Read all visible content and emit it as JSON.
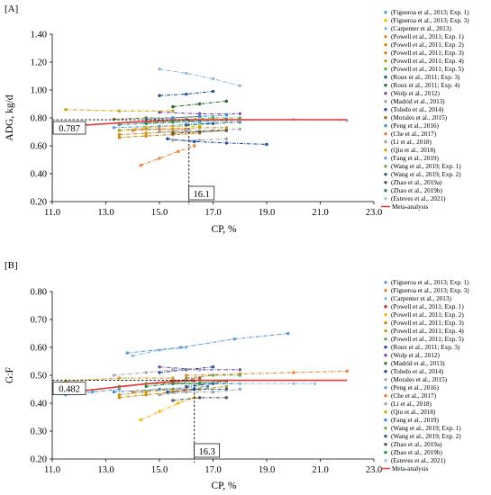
{
  "chart_data": [
    {
      "panel_label": "[A]",
      "type": "line",
      "xlabel": "CP, %",
      "ylabel": "ADG, kg/d",
      "xlim": [
        11.0,
        23.0
      ],
      "ylim": [
        0.2,
        1.4
      ],
      "x_ticks": [
        "11.0",
        "13.0",
        "15.0",
        "17.0",
        "19.0",
        "21.0",
        "23.0"
      ],
      "y_ticks": [
        "0.20",
        "0.40",
        "0.60",
        "0.80",
        "1.00",
        "1.20",
        "1.40"
      ],
      "legend_position": "right",
      "annotations": [
        {
          "label": "0.787",
          "value": 0.787,
          "axis": "y"
        },
        {
          "label": "16.1",
          "value": 16.1,
          "axis": "x"
        }
      ],
      "meta": {
        "name": "Meta-analysis",
        "x": [
          11.5,
          12.5,
          13.5,
          14.5,
          15.5,
          16.1,
          17.0,
          18.0,
          19.0,
          20.0,
          21.0,
          22.0
        ],
        "y": [
          0.74,
          0.752,
          0.764,
          0.775,
          0.784,
          0.787,
          0.787,
          0.787,
          0.787,
          0.787,
          0.787,
          0.787
        ]
      },
      "series": [
        {
          "name": "(Figueroa et al., 2013; Exp. 1)",
          "color": "#4f9fd8",
          "x": [
            13.5,
            14.5,
            15.5,
            16.5
          ],
          "y": [
            0.75,
            0.76,
            0.77,
            0.77
          ]
        },
        {
          "name": "(Figueroa et al., 2013; Exp. 3)",
          "color": "#f5b700",
          "x": [
            13.5,
            14.5,
            15.5,
            16.5
          ],
          "y": [
            0.71,
            0.73,
            0.74,
            0.74
          ]
        },
        {
          "name": "(Carpenter et al., 2013)",
          "color": "#8fb7de",
          "x": [
            15.0,
            16.0,
            17.0,
            18.0
          ],
          "y": [
            1.15,
            1.12,
            1.08,
            1.03
          ]
        },
        {
          "name": "(Powell et al., 2011; Exp. 1)",
          "color": "#f08030",
          "x": [
            14.3,
            15.0,
            15.7,
            16.3
          ],
          "y": [
            0.46,
            0.51,
            0.56,
            0.6
          ]
        },
        {
          "name": "(Powell et al., 2011; Exp. 2)",
          "color": "#c8860b",
          "x": [
            13.5,
            14.5,
            15.5,
            16.5
          ],
          "y": [
            0.66,
            0.67,
            0.68,
            0.69
          ]
        },
        {
          "name": "(Powell et al., 2011; Exp. 3)",
          "color": "#d08a1e",
          "x": [
            13.5,
            14.5,
            15.5,
            16.5,
            17.5
          ],
          "y": [
            0.68,
            0.69,
            0.7,
            0.7,
            0.71
          ]
        },
        {
          "name": "(Powell et al., 2011; Exp. 4)",
          "color": "#b5a019",
          "x": [
            13.5,
            14.5,
            15.5,
            16.5,
            17.5
          ],
          "y": [
            0.71,
            0.72,
            0.72,
            0.73,
            0.73
          ]
        },
        {
          "name": "(Powell et al., 2011; Exp. 5)",
          "color": "#4caf50",
          "x": [
            13.5,
            14.5,
            15.5,
            16.5,
            17.5
          ],
          "y": [
            0.76,
            0.77,
            0.77,
            0.78,
            0.78
          ]
        },
        {
          "name": "(Roux et al., 2011; Exp. 3)",
          "color": "#1f4e9a",
          "x": [
            15.0,
            16.0,
            17.0
          ],
          "y": [
            0.96,
            0.97,
            0.99
          ]
        },
        {
          "name": "(Roux et al., 2011; Exp. 4)",
          "color": "#1f6b2a",
          "x": [
            15.5,
            16.5,
            17.5
          ],
          "y": [
            0.88,
            0.9,
            0.92
          ]
        },
        {
          "name": "(Wolp et al., 2012)",
          "color": "#7a4aa8",
          "x": [
            15.0,
            16.5,
            18.0
          ],
          "y": [
            0.84,
            0.83,
            0.83
          ]
        },
        {
          "name": "(Madrid et al., 2013)",
          "color": "#a8a8a8",
          "x": [
            15.5,
            16.5,
            17.5
          ],
          "y": [
            0.64,
            0.64,
            0.65
          ]
        },
        {
          "name": "(Toledo et al., 2014)",
          "color": "#1a4fa0",
          "x": [
            15.3,
            16.3,
            17.5,
            19.0
          ],
          "y": [
            0.65,
            0.63,
            0.62,
            0.61
          ]
        },
        {
          "name": "(Morales et al., 2015)",
          "color": "#8a6f2a",
          "x": [
            13.3,
            14.5,
            15.5,
            16.5
          ],
          "y": [
            0.79,
            0.8,
            0.8,
            0.81
          ]
        },
        {
          "name": "(Peng et al., 2016)",
          "color": "#3a8fd0",
          "x": [
            14.5,
            15.5,
            16.5,
            17.5
          ],
          "y": [
            0.79,
            0.8,
            0.81,
            0.82
          ]
        },
        {
          "name": "(Che et al., 2017)",
          "color": "#e07b39",
          "x": [
            14.0,
            15.0,
            16.0
          ],
          "y": [
            0.71,
            0.72,
            0.72
          ]
        },
        {
          "name": "(Li et al., 2018)",
          "color": "#a0a0a0",
          "x": [
            15.0,
            16.0,
            17.0,
            18.0
          ],
          "y": [
            0.7,
            0.71,
            0.71,
            0.72
          ]
        },
        {
          "name": "(Qiu et al., 2018)",
          "color": "#d4a017",
          "x": [
            11.5,
            13.5,
            15.5
          ],
          "y": [
            0.86,
            0.85,
            0.85
          ]
        },
        {
          "name": "(Fang et al., 2019)",
          "color": "#5b9bd5",
          "x": [
            13.3,
            15.0,
            16.8
          ],
          "y": [
            0.73,
            0.74,
            0.76
          ]
        },
        {
          "name": "(Wang et al., 2019; Exp. 1)",
          "color": "#6aa84f",
          "x": [
            16.0,
            17.0,
            18.0
          ],
          "y": [
            0.79,
            0.8,
            0.8
          ]
        },
        {
          "name": "(Wang et al., 2019; Exp. 2)",
          "color": "#2e5a8a",
          "x": [
            16.0,
            17.0,
            18.0
          ],
          "y": [
            0.75,
            0.76,
            0.77
          ]
        },
        {
          "name": "(Zhao et al., 2019a)",
          "color": "#555555",
          "x": [
            15.5,
            16.5,
            17.5
          ],
          "y": [
            0.69,
            0.7,
            0.71
          ]
        },
        {
          "name": "(Zhao et al., 2019b)",
          "color": "#2e8b57",
          "x": [
            14.5,
            15.5,
            16.5,
            17.5
          ],
          "y": [
            0.76,
            0.77,
            0.78,
            0.79
          ]
        },
        {
          "name": "(Esteves et al., 2021)",
          "color": "#9dc3e6",
          "x": [
            16.0,
            18.0,
            20.0,
            22.0
          ],
          "y": [
            0.77,
            0.78,
            0.79,
            0.78
          ]
        }
      ]
    },
    {
      "panel_label": "[B]",
      "type": "line",
      "xlabel": "CP, %",
      "ylabel": "G:F",
      "xlim": [
        11.0,
        23.0
      ],
      "ylim": [
        0.2,
        0.8
      ],
      "x_ticks": [
        "11.0",
        "13.0",
        "15.0",
        "17.0",
        "19.0",
        "21.0",
        "23.0"
      ],
      "y_ticks": [
        "0.20",
        "0.30",
        "0.40",
        "0.50",
        "0.60",
        "0.70",
        "0.80"
      ],
      "legend_position": "right",
      "annotations": [
        {
          "label": "0.482",
          "value": 0.482,
          "axis": "y"
        },
        {
          "label": "16.3",
          "value": 16.3,
          "axis": "x"
        }
      ],
      "meta": {
        "name": "Meta-analysis",
        "x": [
          11.5,
          12.5,
          13.5,
          14.5,
          15.5,
          16.3,
          17.0,
          18.0,
          19.0,
          20.0,
          21.0,
          22.0
        ],
        "y": [
          0.437,
          0.448,
          0.459,
          0.469,
          0.477,
          0.482,
          0.482,
          0.482,
          0.482,
          0.482,
          0.482,
          0.482
        ]
      },
      "series": [
        {
          "name": "(Figueroa et al., 2013; Exp. 1)",
          "color": "#4f9fd8",
          "x": [
            11.5,
            12.5,
            13.5
          ],
          "y": [
            0.43,
            0.44,
            0.45
          ]
        },
        {
          "name": "(Figueroa et al., 2013; Exp. 3)",
          "color": "#f08030",
          "x": [
            16.0,
            18.0,
            20.0,
            22.0
          ],
          "y": [
            0.5,
            0.505,
            0.51,
            0.515
          ]
        },
        {
          "name": "(Carpenter et al., 2013)",
          "color": "#8fb7de",
          "x": [
            14.0,
            15.0,
            16.0
          ],
          "y": [
            0.57,
            0.59,
            0.6
          ]
        },
        {
          "name": "(Powell et al., 2011; Exp. 1)",
          "color": "#c0392b",
          "x": [
            13.5,
            14.5,
            15.5,
            16.5
          ],
          "y": [
            0.46,
            0.47,
            0.48,
            0.49
          ]
        },
        {
          "name": "(Powell et al., 2011; Exp. 2)",
          "color": "#f5b700",
          "x": [
            14.3,
            15.0,
            15.7,
            16.3
          ],
          "y": [
            0.34,
            0.37,
            0.4,
            0.42
          ]
        },
        {
          "name": "(Powell et al., 2011; Exp. 3)",
          "color": "#c8860b",
          "x": [
            13.5,
            14.5,
            15.5,
            16.5
          ],
          "y": [
            0.42,
            0.43,
            0.44,
            0.45
          ]
        },
        {
          "name": "(Powell et al., 2011; Exp. 4)",
          "color": "#b5a019",
          "x": [
            13.5,
            14.5,
            15.5,
            16.5,
            17.5
          ],
          "y": [
            0.43,
            0.44,
            0.45,
            0.45,
            0.46
          ]
        },
        {
          "name": "(Powell et al., 2011; Exp. 5)",
          "color": "#4caf50",
          "x": [
            13.5,
            14.5,
            15.5,
            16.5,
            17.5
          ],
          "y": [
            0.46,
            0.47,
            0.47,
            0.48,
            0.48
          ]
        },
        {
          "name": "(Roux et al., 2011; Exp. 3)",
          "color": "#1f4e9a",
          "x": [
            15.0,
            16.0,
            17.0
          ],
          "y": [
            0.51,
            0.52,
            0.53
          ]
        },
        {
          "name": "(Wolp et al., 2012)",
          "color": "#7a4aa8",
          "x": [
            15.0,
            16.5,
            18.0
          ],
          "y": [
            0.53,
            0.52,
            0.52
          ]
        },
        {
          "name": "(Madrid et al., 2013)",
          "color": "#2e7d32",
          "x": [
            15.5,
            16.5,
            17.5
          ],
          "y": [
            0.47,
            0.47,
            0.48
          ]
        },
        {
          "name": "(Toledo et al., 2014)",
          "color": "#1a4fa0",
          "x": [
            15.3,
            16.3,
            17.5
          ],
          "y": [
            0.44,
            0.45,
            0.45
          ]
        },
        {
          "name": "(Morales et al., 2015)",
          "color": "#a8a8a8",
          "x": [
            13.3,
            14.5,
            15.5,
            16.5
          ],
          "y": [
            0.5,
            0.51,
            0.52,
            0.52
          ]
        },
        {
          "name": "(Peng et al., 2016)",
          "color": "#5b9bd5",
          "x": [
            13.8,
            15.8,
            17.8,
            19.8
          ],
          "y": [
            0.58,
            0.6,
            0.63,
            0.65
          ]
        },
        {
          "name": "(Che et al., 2017)",
          "color": "#e07b39",
          "x": [
            14.0,
            15.0,
            16.0
          ],
          "y": [
            0.44,
            0.45,
            0.45
          ]
        },
        {
          "name": "(Li et al., 2018)",
          "color": "#a0a0a0",
          "x": [
            15.0,
            16.0,
            17.0,
            18.0
          ],
          "y": [
            0.43,
            0.44,
            0.44,
            0.45
          ]
        },
        {
          "name": "(Qiu et al., 2018)",
          "color": "#d4a017",
          "x": [
            11.5,
            13.5,
            15.5
          ],
          "y": [
            0.48,
            0.49,
            0.49
          ]
        },
        {
          "name": "(Fang et al., 2019)",
          "color": "#3a8fd0",
          "x": [
            13.3,
            15.0,
            16.8
          ],
          "y": [
            0.44,
            0.45,
            0.46
          ]
        },
        {
          "name": "(Wang et al., 2019; Exp. 1)",
          "color": "#6aa84f",
          "x": [
            16.0,
            17.0,
            18.0
          ],
          "y": [
            0.49,
            0.5,
            0.5
          ]
        },
        {
          "name": "(Wang et al., 2019; Exp. 2)",
          "color": "#2e5a8a",
          "x": [
            16.0,
            17.0,
            18.0
          ],
          "y": [
            0.46,
            0.47,
            0.47
          ]
        },
        {
          "name": "(Zhao et al., 2019a)",
          "color": "#555555",
          "x": [
            15.5,
            16.5,
            17.5
          ],
          "y": [
            0.41,
            0.42,
            0.42
          ]
        },
        {
          "name": "(Zhao et al., 2019b)",
          "color": "#2e8b57",
          "x": [
            14.5,
            15.5,
            16.5,
            17.5
          ],
          "y": [
            0.46,
            0.47,
            0.47,
            0.48
          ]
        },
        {
          "name": "(Esteves et al., 2021)",
          "color": "#9dc3e6",
          "x": [
            16.0,
            18.0,
            20.0,
            20.8
          ],
          "y": [
            0.48,
            0.47,
            0.47,
            0.47
          ]
        }
      ]
    }
  ]
}
